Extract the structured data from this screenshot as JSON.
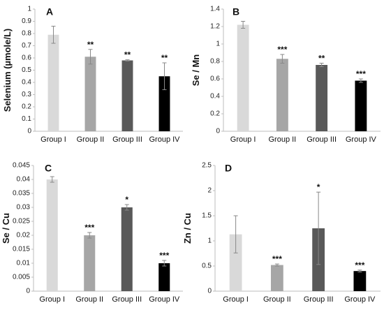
{
  "chart_data": [
    {
      "type": "bar",
      "panel_label": "A",
      "ylabel": "Selenium (µmole/L)",
      "categories": [
        "Group I",
        "Group II",
        "Group III",
        "Group IV"
      ],
      "values": [
        0.79,
        0.61,
        0.58,
        0.45
      ],
      "errors": [
        0.07,
        0.06,
        0.005,
        0.11
      ],
      "significance": [
        "",
        "**",
        "**",
        "**"
      ],
      "ylim": [
        0,
        1
      ],
      "yticks": [
        "0",
        "0.1",
        "0.2",
        "0.3",
        "0.4",
        "0.5",
        "0.6",
        "0.7",
        "0.8",
        "0.9",
        "1"
      ],
      "colors": [
        "#d9d9d9",
        "#a6a6a6",
        "#595959",
        "#000000"
      ]
    },
    {
      "type": "bar",
      "panel_label": "B",
      "ylabel": "Se / Mn",
      "categories": [
        "Group I",
        "Group II",
        "Group III",
        "Group IV"
      ],
      "values": [
        1.22,
        0.83,
        0.76,
        0.58
      ],
      "errors": [
        0.04,
        0.05,
        0.02,
        0.02
      ],
      "significance": [
        "",
        "***",
        "**",
        "***"
      ],
      "ylim": [
        0,
        1.4
      ],
      "yticks": [
        "0",
        "0.2",
        "0.4",
        "0.6",
        "0.8",
        "1",
        "1.2",
        "1.4"
      ],
      "colors": [
        "#d9d9d9",
        "#a6a6a6",
        "#595959",
        "#000000"
      ]
    },
    {
      "type": "bar",
      "panel_label": "C",
      "ylabel": "Se / Cu",
      "categories": [
        "Group I",
        "Group II",
        "Group III",
        "Group IV"
      ],
      "values": [
        0.04,
        0.02,
        0.03,
        0.01
      ],
      "errors": [
        0.001,
        0.001,
        0.001,
        0.001
      ],
      "significance": [
        "",
        "***",
        "*",
        "***"
      ],
      "ylim": [
        0,
        0.045
      ],
      "yticks": [
        "0",
        "0.005",
        "0.01",
        "0.015",
        "0.02",
        "0.025",
        "0.03",
        "0.035",
        "0.04",
        "0.045"
      ],
      "colors": [
        "#d9d9d9",
        "#a6a6a6",
        "#595959",
        "#000000"
      ]
    },
    {
      "type": "bar",
      "panel_label": "D",
      "ylabel": "Zn / Cu",
      "categories": [
        "Group I",
        "Group II",
        "Group III",
        "Group IV"
      ],
      "values": [
        1.13,
        0.52,
        1.25,
        0.4
      ],
      "errors": [
        0.37,
        0.02,
        0.72,
        0.02
      ],
      "significance": [
        "",
        "***",
        "*",
        "***"
      ],
      "ylim": [
        0,
        2.5
      ],
      "yticks": [
        "0",
        "0.5",
        "1",
        "1.5",
        "2",
        "2.5"
      ],
      "colors": [
        "#d9d9d9",
        "#a6a6a6",
        "#595959",
        "#000000"
      ]
    }
  ]
}
